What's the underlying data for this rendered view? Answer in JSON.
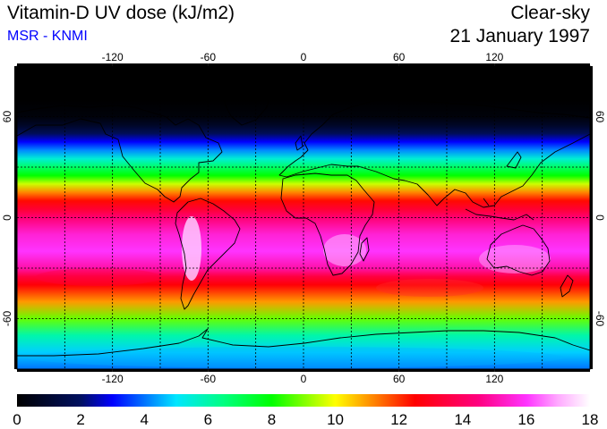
{
  "header": {
    "title": "Vitamin-D UV dose (kJ/m2)",
    "subtitle": "MSR - KNMI",
    "condition": "Clear-sky",
    "date": "21 January 1997"
  },
  "colors": {
    "subtitle": "#0000ff",
    "frame": "#000000",
    "coastline": "#000000",
    "gridlines": "#000000"
  },
  "map": {
    "projection": "equirectangular",
    "lon_range": [
      -180,
      180
    ],
    "lat_range": [
      -90,
      90
    ],
    "grid": "dashed, 30 degree spacing",
    "lon_ticks": [
      "-120",
      "-60",
      "0",
      "60",
      "120"
    ],
    "lat_ticks": [
      "60",
      "0",
      "-60"
    ]
  },
  "colorbar": {
    "min": 0,
    "max": 18,
    "ticks": [
      "0",
      "2",
      "4",
      "6",
      "8",
      "10",
      "12",
      "14",
      "16",
      "18"
    ]
  },
  "chart_data": {
    "type": "heatmap",
    "title": "Vitamin-D UV dose (kJ/m2)",
    "subtitle": "MSR - KNMI",
    "units": "kJ/m2",
    "date": "21 January 1997",
    "condition": "Clear-sky",
    "value_range": [
      0,
      18
    ],
    "colorscale": [
      {
        "value": 0,
        "color": "#000000"
      },
      {
        "value": 2,
        "color": "#001060"
      },
      {
        "value": 3,
        "color": "#0000ff"
      },
      {
        "value": 5,
        "color": "#00e6ff"
      },
      {
        "value": 6.5,
        "color": "#00ff80"
      },
      {
        "value": 8,
        "color": "#00ff00"
      },
      {
        "value": 10,
        "color": "#ffff00"
      },
      {
        "value": 11,
        "color": "#ff9900"
      },
      {
        "value": 12.5,
        "color": "#ff0000"
      },
      {
        "value": 14.5,
        "color": "#ff0080"
      },
      {
        "value": 16,
        "color": "#ff33ff"
      },
      {
        "value": 17,
        "color": "#ffaaff"
      },
      {
        "value": 18,
        "color": "#ffffff"
      }
    ],
    "zonal_profile": {
      "latitude": [
        90,
        80,
        70,
        60,
        55,
        50,
        45,
        40,
        35,
        30,
        25,
        20,
        15,
        10,
        5,
        0,
        -10,
        -20,
        -30,
        -35,
        -40,
        -50,
        -60,
        -70,
        -80,
        -90
      ],
      "dose": [
        0,
        0,
        0,
        0.2,
        0.8,
        1.8,
        3.0,
        4.2,
        5.5,
        6.8,
        8.0,
        9.6,
        11.2,
        12.4,
        13.3,
        14.3,
        15.5,
        16.0,
        15.0,
        13.5,
        12.6,
        11.0,
        8.8,
        6.0,
        4.8,
        4.0
      ]
    },
    "lon_ticks": [
      -120,
      -60,
      0,
      60,
      120
    ],
    "lat_ticks": [
      60,
      0,
      -60
    ],
    "colorbar_ticks": [
      0,
      2,
      4,
      6,
      8,
      10,
      12,
      14,
      16,
      18
    ]
  }
}
